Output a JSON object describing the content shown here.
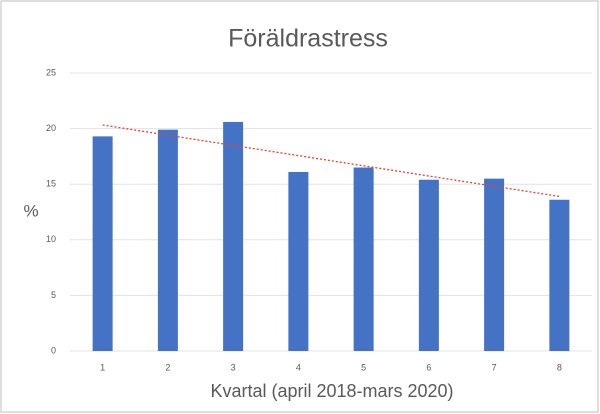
{
  "chart_data": {
    "type": "bar",
    "title": "Föräldrastress",
    "xlabel": "Kvartal (april 2018-mars 2020)",
    "ylabel": "%",
    "categories": [
      "1",
      "2",
      "3",
      "4",
      "5",
      "6",
      "7",
      "8"
    ],
    "values": [
      19.3,
      19.9,
      20.6,
      16.1,
      16.5,
      15.4,
      15.5,
      13.6
    ],
    "color": "#4472c4",
    "trendline": true,
    "trendline_color": "#e8432e",
    "ylim": [
      0,
      25
    ],
    "yticks": [
      0,
      5,
      10,
      15,
      20,
      25
    ],
    "grid": true
  }
}
